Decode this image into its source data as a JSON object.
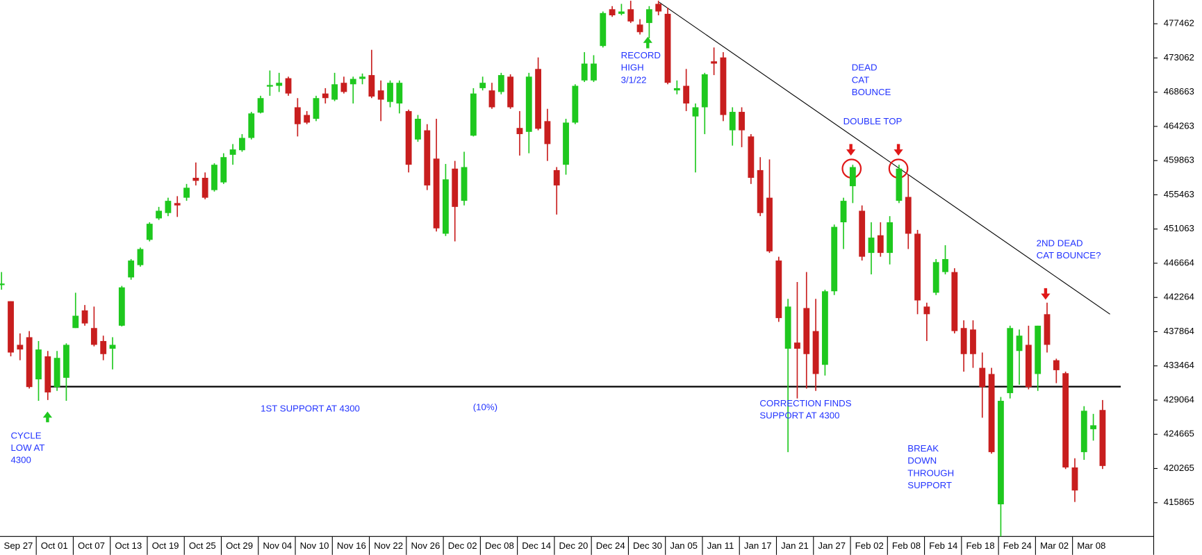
{
  "chart_data": {
    "type": "candlestick",
    "categories": [
      "Sep 27",
      null,
      null,
      null,
      "Oct 01",
      null,
      null,
      null,
      "Oct 07",
      null,
      null,
      null,
      "Oct 13",
      null,
      null,
      null,
      "Oct 19",
      null,
      null,
      null,
      "Oct 25",
      null,
      null,
      null,
      "Oct 29",
      null,
      null,
      null,
      "Nov 04",
      null,
      null,
      null,
      "Nov 10",
      null,
      null,
      null,
      "Nov 16",
      null,
      null,
      null,
      "Nov 22",
      null,
      null,
      null,
      "Nov 26",
      null,
      null,
      null,
      "Dec 02",
      null,
      null,
      null,
      "Dec 08",
      null,
      null,
      null,
      "Dec 14",
      null,
      null,
      null,
      "Dec 20",
      null,
      null,
      null,
      "Dec 24",
      null,
      null,
      null,
      "Dec 30",
      null,
      null,
      null,
      "Jan 05",
      null,
      null,
      null,
      "Jan 11",
      null,
      null,
      null,
      "Jan 17",
      null,
      null,
      null,
      "Jan 21",
      null,
      null,
      null,
      "Jan 27",
      null,
      null,
      null,
      "Feb 02",
      null,
      null,
      null,
      "Feb 08",
      null,
      null,
      null,
      "Feb 14",
      null,
      null,
      null,
      "Feb 18",
      null,
      null,
      null,
      "Feb 24",
      null,
      null,
      null,
      "Mar 02",
      null,
      null,
      null,
      "Mar 08",
      null,
      null,
      null
    ],
    "open": [
      443850,
      441780,
      436170,
      437150,
      431730,
      434690,
      430740,
      431930,
      438330,
      440600,
      438330,
      436660,
      435670,
      438630,
      444840,
      446420,
      449670,
      452430,
      453120,
      454400,
      455090,
      457650,
      457650,
      456070,
      457060,
      460610,
      461200,
      462780,
      466030,
      469380,
      469480,
      470460,
      466720,
      465730,
      465240,
      468490,
      467700,
      469870,
      469680,
      470370,
      470860,
      468890,
      467410,
      467210,
      466230,
      462580,
      463760,
      460120,
      450460,
      458830,
      454690,
      463070,
      469180,
      468890,
      468690,
      470660,
      464060,
      463560,
      471650,
      464940,
      458640,
      459330,
      464750,
      470170,
      470170,
      474600,
      479330,
      478740,
      479330,
      477360,
      477560,
      480020,
      478740,
      468890,
      469480,
      465540,
      466720,
      472630,
      473130,
      463760,
      466130,
      462970,
      458640,
      455090,
      447010,
      435670,
      436460,
      440900,
      437940,
      433600,
      443060,
      451930,
      456570,
      453410,
      447990,
      450260,
      447990,
      454690,
      455190,
      450460,
      441090,
      442870,
      445530,
      445530,
      438330,
      438140,
      433210,
      432420,
      415660,
      429960,
      435380,
      436170,
      432420,
      440110,
      434190,
      432520,
      420400,
      422370,
      425320,
      427790
    ],
    "high": [
      445530,
      441780,
      437640,
      437940,
      436660,
      435380,
      435380,
      436360,
      442870,
      441290,
      441090,
      437350,
      437150,
      443750,
      447200,
      448680,
      451930,
      453910,
      455090,
      455290,
      456860,
      459620,
      458340,
      459520,
      460810,
      461990,
      463270,
      466130,
      468200,
      471450,
      471150,
      470660,
      467900,
      466230,
      468200,
      469180,
      471150,
      470660,
      470660,
      471060,
      474110,
      470170,
      470170,
      470170,
      466420,
      465730,
      464550,
      465240,
      459430,
      459820,
      461000,
      469180,
      470660,
      469870,
      471150,
      470960,
      466230,
      471150,
      473130,
      466520,
      459030,
      465240,
      469680,
      473810,
      473420,
      479040,
      479730,
      480020,
      480420,
      478050,
      479730,
      480420,
      479530,
      470170,
      471650,
      467210,
      471150,
      474410,
      473810,
      466720,
      466720,
      463270,
      460310,
      460020,
      447500,
      442080,
      444250,
      445530,
      442080,
      443260,
      451640,
      455090,
      459330,
      454100,
      451930,
      451930,
      452720,
      459330,
      458050,
      450950,
      441590,
      447200,
      448980,
      446020,
      439320,
      439320,
      435180,
      433210,
      429460,
      438630,
      438140,
      438630,
      438630,
      441590,
      434390,
      432720,
      421580,
      428280,
      427290,
      429070
    ],
    "low": [
      443260,
      434690,
      434190,
      430550,
      428970,
      429070,
      430250,
      428970,
      438330,
      438630,
      435970,
      434190,
      433010,
      438530,
      444540,
      446220,
      449470,
      452230,
      452720,
      452620,
      454690,
      456670,
      454890,
      455880,
      456860,
      459330,
      461000,
      462580,
      465930,
      468200,
      468690,
      468200,
      462970,
      464550,
      464940,
      467210,
      467510,
      468490,
      467210,
      469680,
      467900,
      464940,
      466720,
      465930,
      458340,
      462280,
      456070,
      450750,
      450160,
      449470,
      454100,
      462970,
      468890,
      466520,
      468390,
      466520,
      460510,
      460810,
      463760,
      459820,
      452920,
      458050,
      464550,
      469970,
      469970,
      474410,
      478350,
      478550,
      477560,
      476080,
      475590,
      478550,
      469680,
      468390,
      466230,
      458340,
      463270,
      470860,
      464940,
      461790,
      461590,
      456860,
      452720,
      447990,
      439120,
      422370,
      429270,
      430550,
      430250,
      432220,
      442570,
      448490,
      454400,
      447010,
      445230,
      447500,
      446510,
      454400,
      448490,
      440110,
      436660,
      442570,
      445230,
      437640,
      432720,
      433210,
      426800,
      422170,
      411530,
      429270,
      431040,
      430450,
      430250,
      435180,
      431240,
      420200,
      415960,
      421380,
      423850,
      420200
    ],
    "close": [
      444050,
      435180,
      435570,
      430740,
      435570,
      430050,
      434490,
      436170,
      439910,
      438920,
      436170,
      434980,
      436170,
      443560,
      447010,
      448490,
      451740,
      453410,
      454690,
      454100,
      456370,
      457260,
      455090,
      459330,
      460310,
      461300,
      462780,
      465930,
      467900,
      469580,
      469870,
      468490,
      464550,
      464750,
      467900,
      467900,
      469680,
      468690,
      470370,
      470660,
      468100,
      467700,
      469870,
      469870,
      459330,
      465240,
      456670,
      451150,
      457450,
      453910,
      459030,
      468490,
      469870,
      466720,
      470860,
      466720,
      463270,
      470660,
      463960,
      461990,
      456670,
      464750,
      469480,
      472340,
      472340,
      478840,
      478550,
      479040,
      477760,
      476380,
      479330,
      479040,
      469870,
      469180,
      467210,
      466720,
      470960,
      472340,
      465730,
      466130,
      463760,
      457650,
      453120,
      448190,
      439610,
      441090,
      435670,
      434980,
      432420,
      443060,
      451340,
      454690,
      459030,
      447500,
      449960,
      447990,
      451930,
      458830,
      450460,
      441880,
      440110,
      446810,
      447200,
      437940,
      434980,
      434980,
      430740,
      422370,
      428970,
      438330,
      437350,
      430740,
      438630,
      436170,
      432910,
      420400,
      417440,
      427690,
      425820,
      420590
    ],
    "up_color": "#1ec81e",
    "down_color": "#c81e1e",
    "ylim": [
      411525,
      480517
    ],
    "yticks": [
      415865,
      420265,
      424665,
      429064,
      433464,
      437864,
      442264,
      446664,
      451063,
      455463,
      459863,
      464263,
      468663,
      473062,
      477462
    ],
    "annotations": [
      {
        "lines": [
          "RECORD",
          "HIGH",
          "3/1/22"
        ]
      },
      {
        "lines": [
          "DEAD",
          "CAT",
          "BOUNCE"
        ]
      },
      {
        "lines": [
          "DOUBLE TOP"
        ]
      },
      {
        "lines": [
          "2ND DEAD",
          "CAT BOUNCE?"
        ]
      },
      {
        "lines": [
          "CORRECTION FINDS",
          "SUPPORT AT 4300"
        ]
      },
      {
        "lines": [
          "1ST SUPPORT AT 4300"
        ]
      },
      {
        "lines": [
          "(10%)"
        ]
      },
      {
        "lines": [
          "CYCLE",
          "LOW AT",
          "4300"
        ]
      },
      {
        "lines": [
          "BREAK",
          "DOWN",
          "THROUGH",
          "SUPPORT"
        ]
      }
    ]
  }
}
